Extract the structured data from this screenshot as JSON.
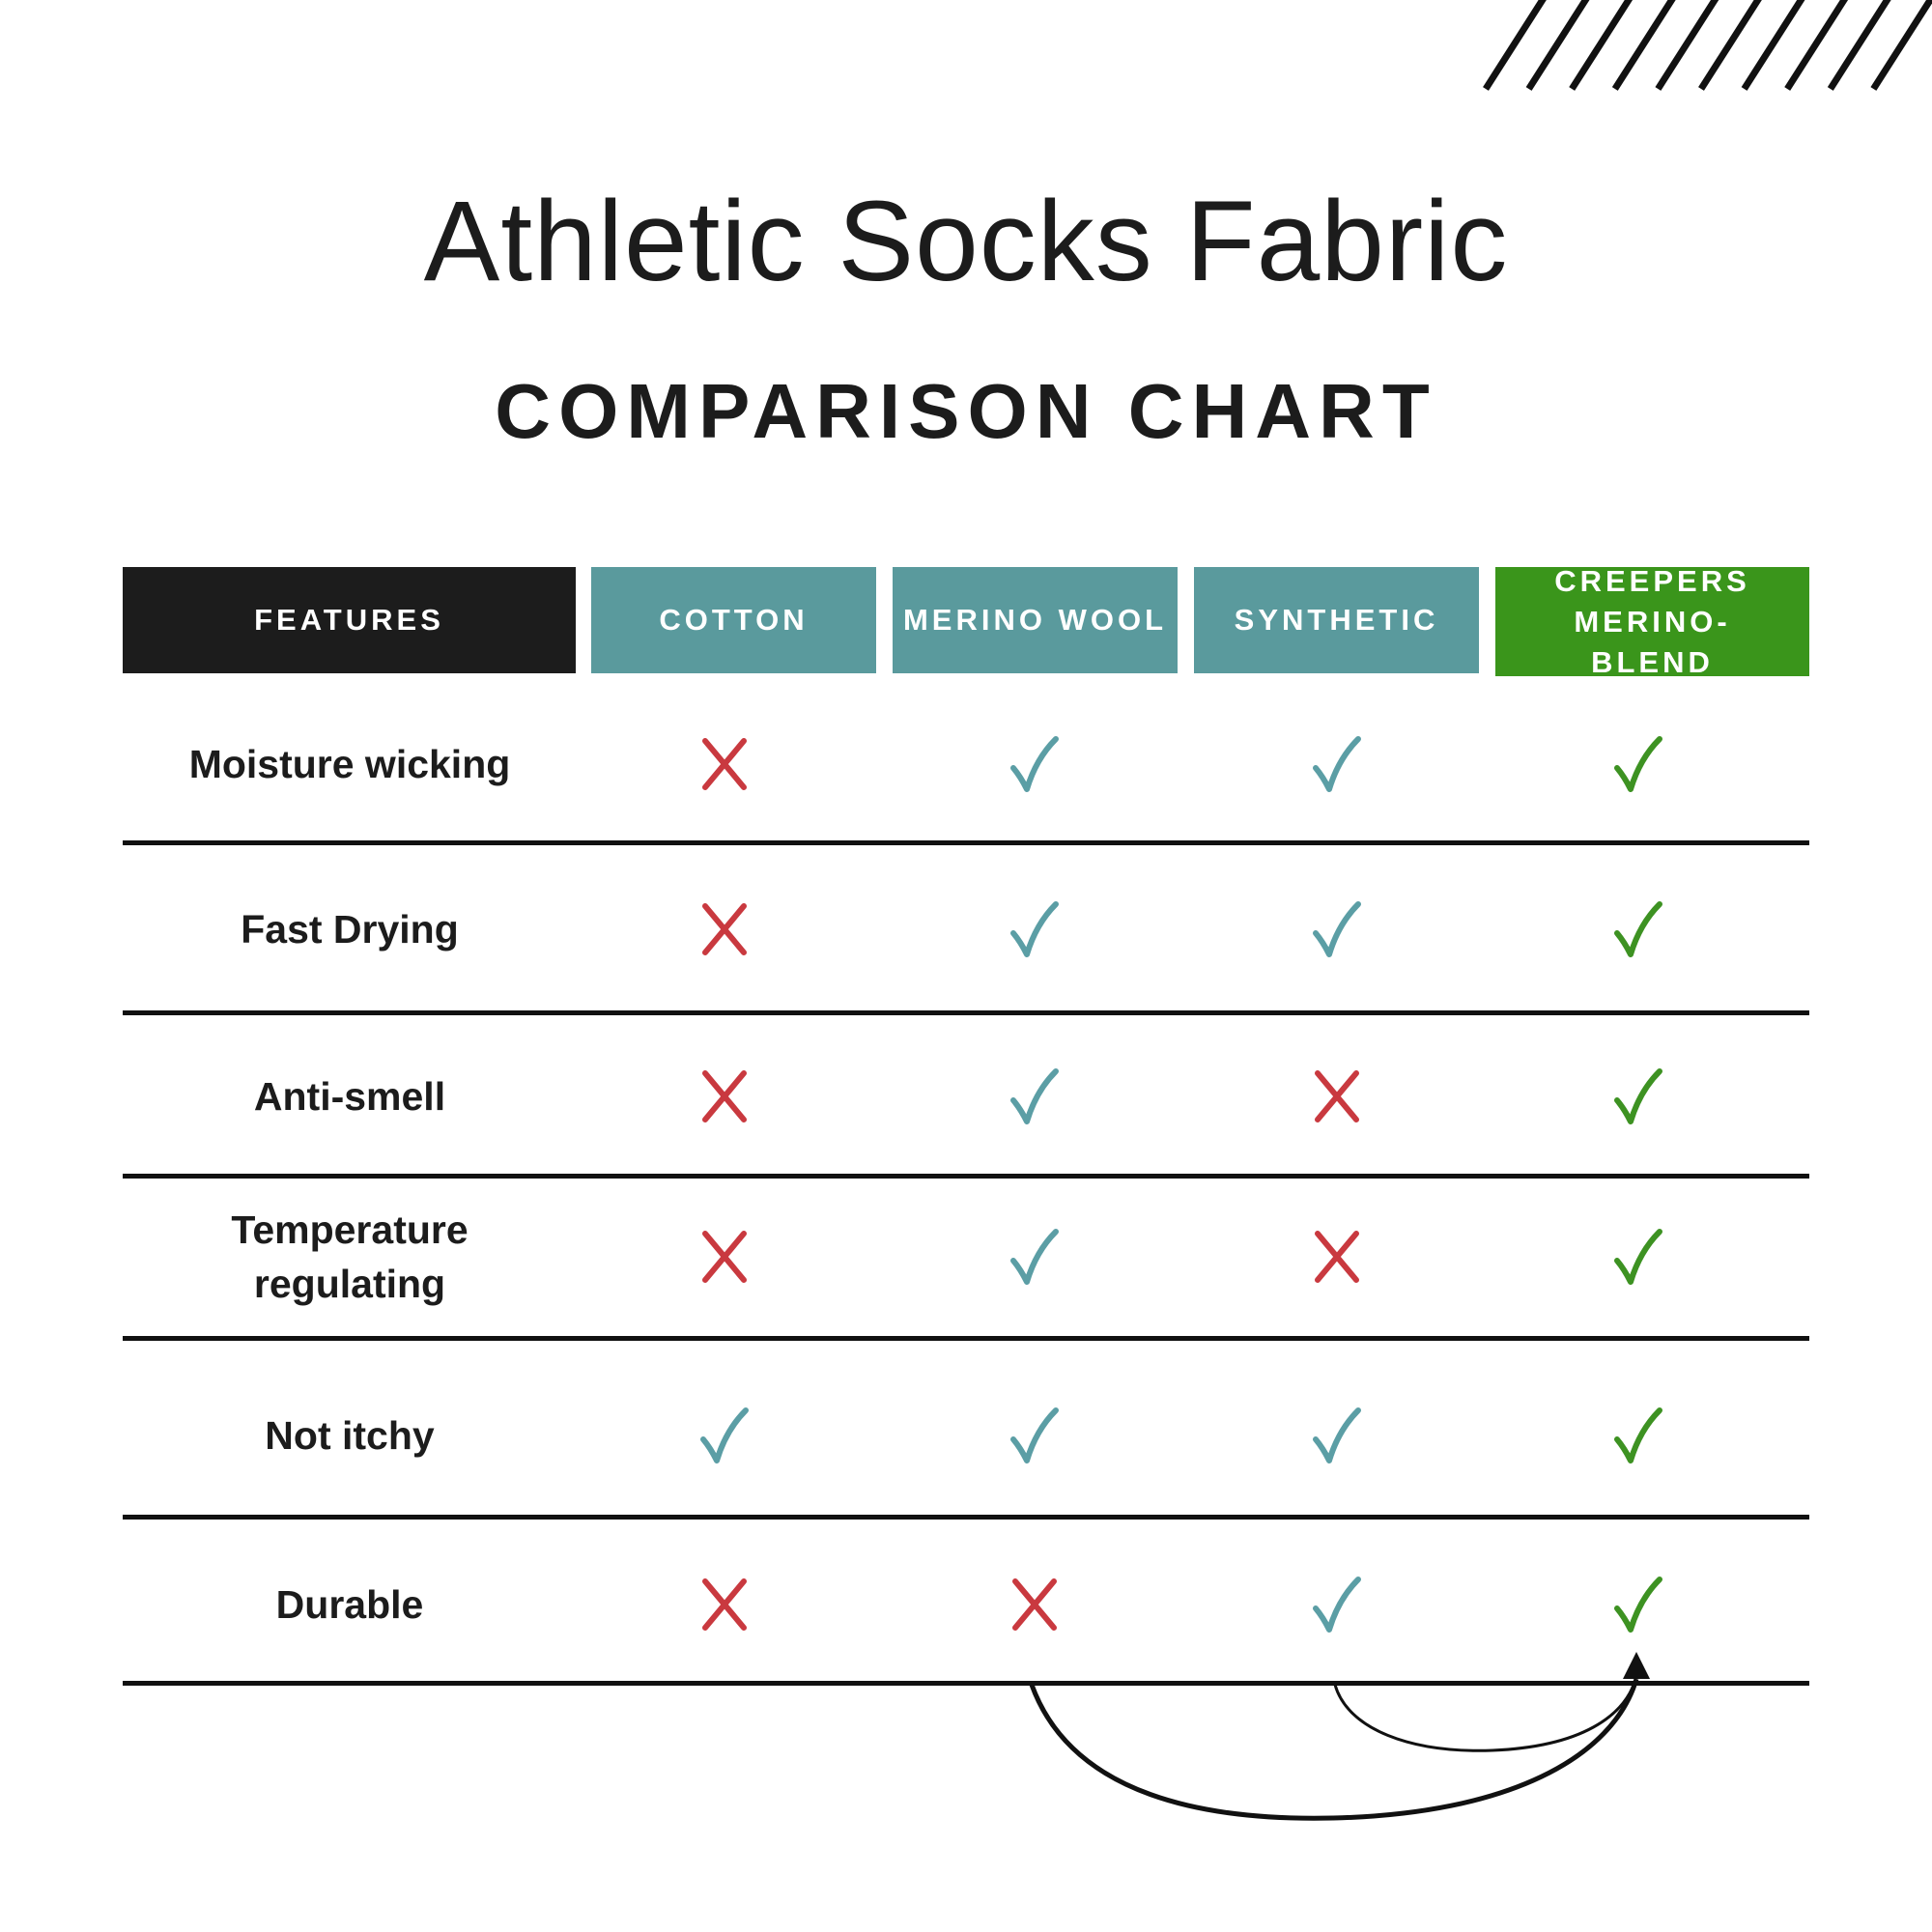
{
  "title": "Athletic Socks Fabric",
  "subtitle": "COMPARISON CHART",
  "colors": {
    "features_header": "#1c1c1c",
    "material_header": "#5a9a9d",
    "creepers_header": "#3a951b",
    "cross": "#c9393f",
    "check_teal": "#5b9ea5",
    "check_green": "#3d9222"
  },
  "columns": [
    {
      "label": "FEATURES"
    },
    {
      "label": "COTTON"
    },
    {
      "label": "MERINO WOOL"
    },
    {
      "label": "SYNTHETIC"
    },
    {
      "label": "CREEPERS MERINO-BLEND"
    }
  ],
  "rows": [
    {
      "feature": "Moisture wicking",
      "values": [
        "cross",
        "check",
        "check",
        "check"
      ]
    },
    {
      "feature": "Fast Drying",
      "values": [
        "cross",
        "check",
        "check",
        "check"
      ]
    },
    {
      "feature": "Anti-smell",
      "values": [
        "cross",
        "check",
        "cross",
        "check"
      ]
    },
    {
      "feature": "Temperature regulating",
      "values": [
        "cross",
        "check",
        "cross",
        "check"
      ]
    },
    {
      "feature": "Not itchy",
      "values": [
        "check",
        "check",
        "check",
        "check"
      ]
    },
    {
      "feature": "Durable",
      "values": [
        "cross",
        "cross",
        "check",
        "check"
      ]
    }
  ]
}
